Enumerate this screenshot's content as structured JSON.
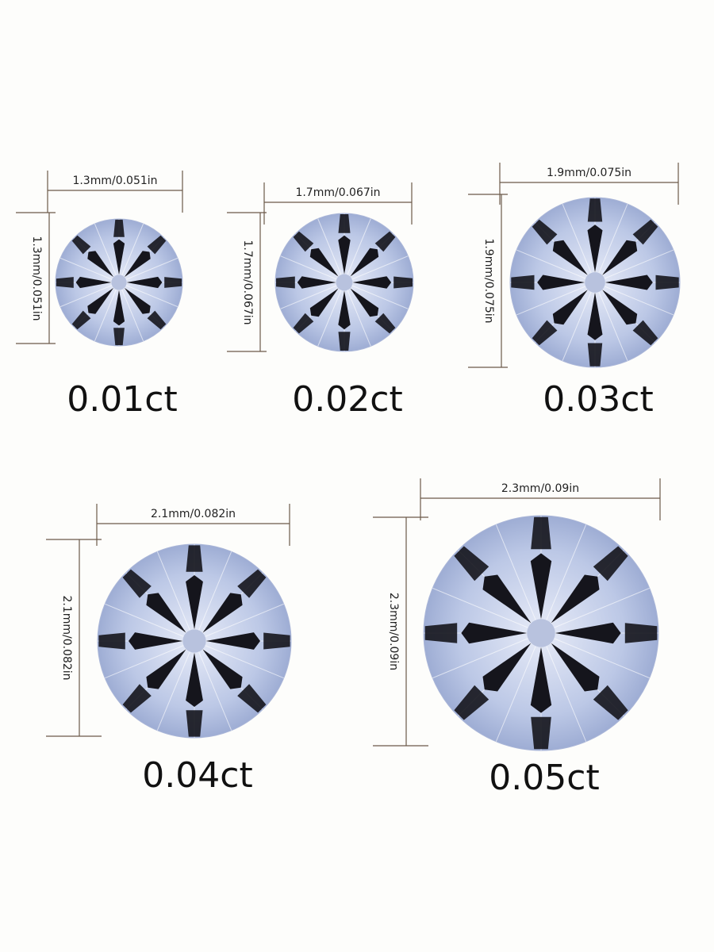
{
  "colors": {
    "line": "#6b5a4a",
    "facet_dark": "#15151c",
    "facet_light": "#c9d3ec",
    "background": "#fdfdfb"
  },
  "stones": [
    {
      "carat": "0.01ct",
      "width": "1.3mm/0.051in",
      "height": "1.3mm/0.051in"
    },
    {
      "carat": "0.02ct",
      "width": "1.7mm/0.067in",
      "height": "1.7mm/0.067in"
    },
    {
      "carat": "0.03ct",
      "width": "1.9mm/0.075in",
      "height": "1.9mm/0.075in"
    },
    {
      "carat": "0.04ct",
      "width": "2.1mm/0.082in",
      "height": "2.1mm/0.082in"
    },
    {
      "carat": "0.05ct",
      "width": "2.3mm/0.09in",
      "height": "2.3mm/0.09in"
    }
  ]
}
